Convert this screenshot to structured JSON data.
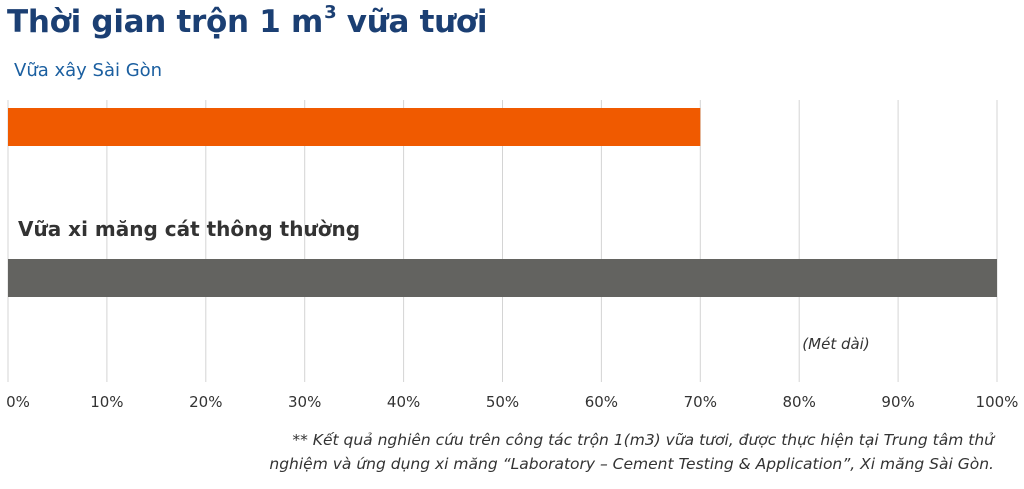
{
  "chart_title": {
    "main": "Thời gian trộn 1 m",
    "superscript": "3",
    "suffix": " vữa tươi"
  },
  "chart_data": {
    "type": "bar",
    "orientation": "horizontal",
    "categories": [
      "Vữa xây Sài Gòn",
      "Vữa xi măng cát thông thường"
    ],
    "values": [
      70,
      100
    ],
    "unit_note": "(Mét dài)",
    "xlim": [
      0,
      100
    ],
    "xticks": [
      "0%",
      "10%",
      "20%",
      "30%",
      "40%",
      "50%",
      "60%",
      "70%",
      "80%",
      "90%",
      "100%"
    ],
    "grid": "vertical",
    "colors": [
      "#f05a00",
      "#636360"
    ],
    "category_label_colors": [
      "#1b5fa0",
      "#333333"
    ]
  },
  "footnote": {
    "line1": "** Kết quả nghiên cứu trên công tác trộn 1(m3) vữa tươi, được thực hiện tại Trung tâm thử",
    "line2": "nghiệm và ứng dụng xi măng “Laboratory – Cement Testing & Application”, Xi măng Sài Gòn."
  }
}
